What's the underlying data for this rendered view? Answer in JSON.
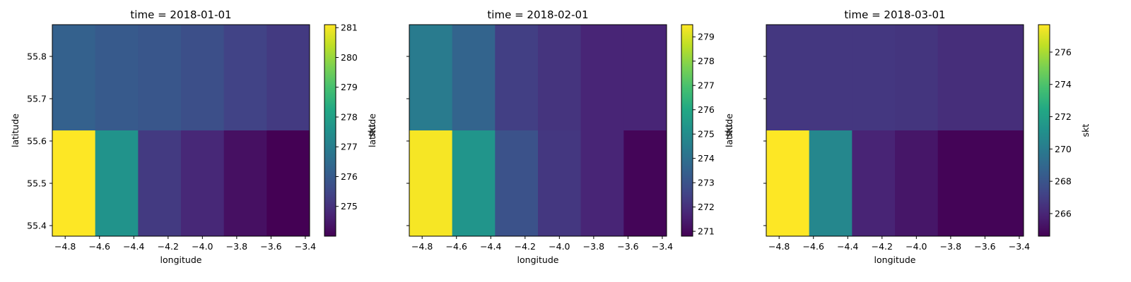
{
  "chart_data": [
    {
      "type": "heatmap",
      "title": "time = 2018-01-01",
      "xlabel": "longitude",
      "ylabel": "latitude",
      "colorbar_label": "skt",
      "colormap": "viridis",
      "x": [
        -4.75,
        -4.5,
        -4.25,
        -4.0,
        -3.75,
        -3.5
      ],
      "y": [
        55.75,
        55.5
      ],
      "xlim": [
        -4.875,
        -3.375
      ],
      "ylim": [
        55.375,
        55.875
      ],
      "xticks": [
        "−4.8",
        "−4.6",
        "−4.4",
        "−4.2",
        "−4.0",
        "−3.8",
        "−3.6",
        "−3.4"
      ],
      "yticks": [
        "55.4",
        "55.5",
        "55.6",
        "55.7",
        "55.8"
      ],
      "values": [
        [
          276.2,
          276.0,
          275.9,
          275.7,
          275.4,
          275.2
        ],
        [
          281.1,
          277.6,
          275.2,
          274.8,
          274.3,
          274.0
        ]
      ],
      "cmin": 274.0,
      "cmax": 281.1,
      "colorbar_ticks": [
        "275",
        "276",
        "277",
        "278",
        "279",
        "280",
        "281"
      ]
    },
    {
      "type": "heatmap",
      "title": "time = 2018-02-01",
      "xlabel": "longitude",
      "ylabel": "latitude",
      "colorbar_label": "skt",
      "colormap": "viridis",
      "x": [
        -4.75,
        -4.5,
        -4.25,
        -4.0,
        -3.75,
        -3.5
      ],
      "y": [
        55.75,
        55.5
      ],
      "xlim": [
        -4.875,
        -3.375
      ],
      "ylim": [
        55.375,
        55.875
      ],
      "xticks": [
        "−4.8",
        "−4.6",
        "−4.4",
        "−4.2",
        "−4.0",
        "−3.8",
        "−3.6",
        "−3.4"
      ],
      "yticks": [],
      "values": [
        [
          274.4,
          273.6,
          272.4,
          272.1,
          271.7,
          271.7
        ],
        [
          279.4,
          275.3,
          273.0,
          272.2,
          271.7,
          270.9
        ]
      ],
      "cmin": 270.8,
      "cmax": 279.5,
      "colorbar_ticks": [
        "271",
        "272",
        "273",
        "274",
        "275",
        "276",
        "277",
        "278",
        "279"
      ]
    },
    {
      "type": "heatmap",
      "title": "time = 2018-03-01",
      "xlabel": "longitude",
      "ylabel": "latitude",
      "colorbar_label": "skt",
      "colormap": "viridis",
      "x": [
        -4.75,
        -4.5,
        -4.25,
        -4.0,
        -3.75,
        -3.5
      ],
      "y": [
        55.75,
        55.5
      ],
      "xlim": [
        -4.875,
        -3.375
      ],
      "ylim": [
        55.375,
        55.875
      ],
      "xticks": [
        "−4.8",
        "−4.6",
        "−4.4",
        "−4.2",
        "−4.0",
        "−3.8",
        "−3.6",
        "−3.4"
      ],
      "yticks": [],
      "values": [
        [
          266.7,
          266.7,
          266.7,
          266.6,
          266.3,
          266.3
        ],
        [
          277.7,
          270.6,
          265.9,
          265.4,
          264.7,
          264.7
        ]
      ],
      "cmin": 264.6,
      "cmax": 277.7,
      "colorbar_ticks": [
        "266",
        "268",
        "270",
        "272",
        "274",
        "276"
      ]
    }
  ]
}
